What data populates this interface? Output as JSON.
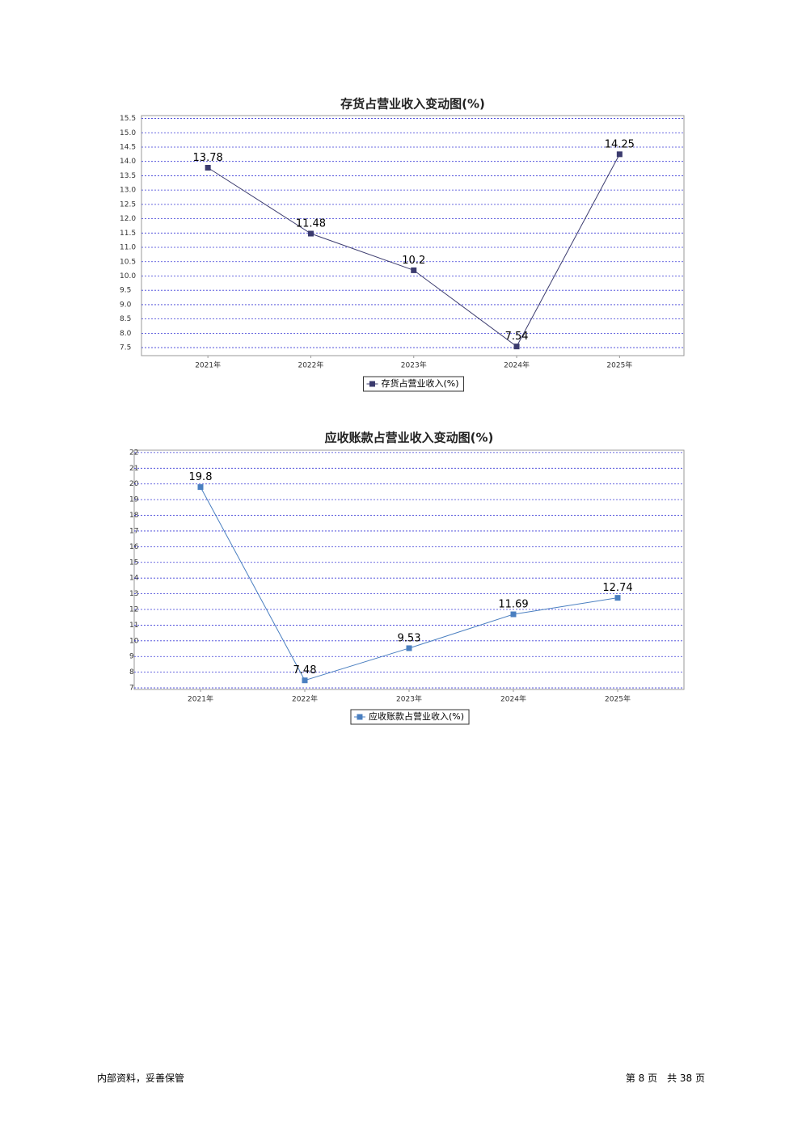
{
  "chart_data": [
    {
      "type": "line",
      "title": "存货占营业收入变动图(%)",
      "categories": [
        "2021年",
        "2022年",
        "2023年",
        "2024年",
        "2025年"
      ],
      "series": [
        {
          "name": "存货占营业收入(%)",
          "color": "#3b3b6e",
          "values": [
            13.78,
            11.48,
            10.2,
            7.54,
            14.25
          ]
        }
      ],
      "ylim": [
        7.22,
        15.6
      ],
      "yticks": [
        7.5,
        {
          "value": 8,
          "label": "8.0"
        },
        8.5,
        {
          "value": 9,
          "label": "9.0"
        },
        9.5,
        {
          "value": 10,
          "label": "10.0"
        },
        10.5,
        {
          "value": 11,
          "label": "11.0"
        },
        11.5,
        {
          "value": 12,
          "label": "12.0"
        },
        12.5,
        {
          "value": 13,
          "label": "13.0"
        },
        13.5,
        {
          "value": 14,
          "label": "14.0"
        },
        14.5,
        {
          "value": 15,
          "label": "15.0"
        },
        15.5
      ],
      "grid": true,
      "legend": "bottom"
    },
    {
      "type": "line",
      "title": "应收账款占营业收入变动图(%)",
      "categories": [
        "2021年",
        "2022年",
        "2023年",
        "2024年",
        "2025年"
      ],
      "series": [
        {
          "name": "应收账款占营业收入(%)",
          "color": "#4a7fc0",
          "values": [
            19.8,
            7.48,
            9.53,
            11.69,
            12.74
          ]
        }
      ],
      "ylim": [
        6.9,
        22.15
      ],
      "yticks": [
        7,
        8,
        9,
        10,
        11,
        12,
        13,
        14,
        15,
        16,
        17,
        18,
        19,
        20,
        21,
        22
      ],
      "grid": true,
      "legend": "bottom"
    }
  ],
  "footer": {
    "left": "内部资料，妥善保管",
    "right": "第 8 页　共 38 页"
  }
}
